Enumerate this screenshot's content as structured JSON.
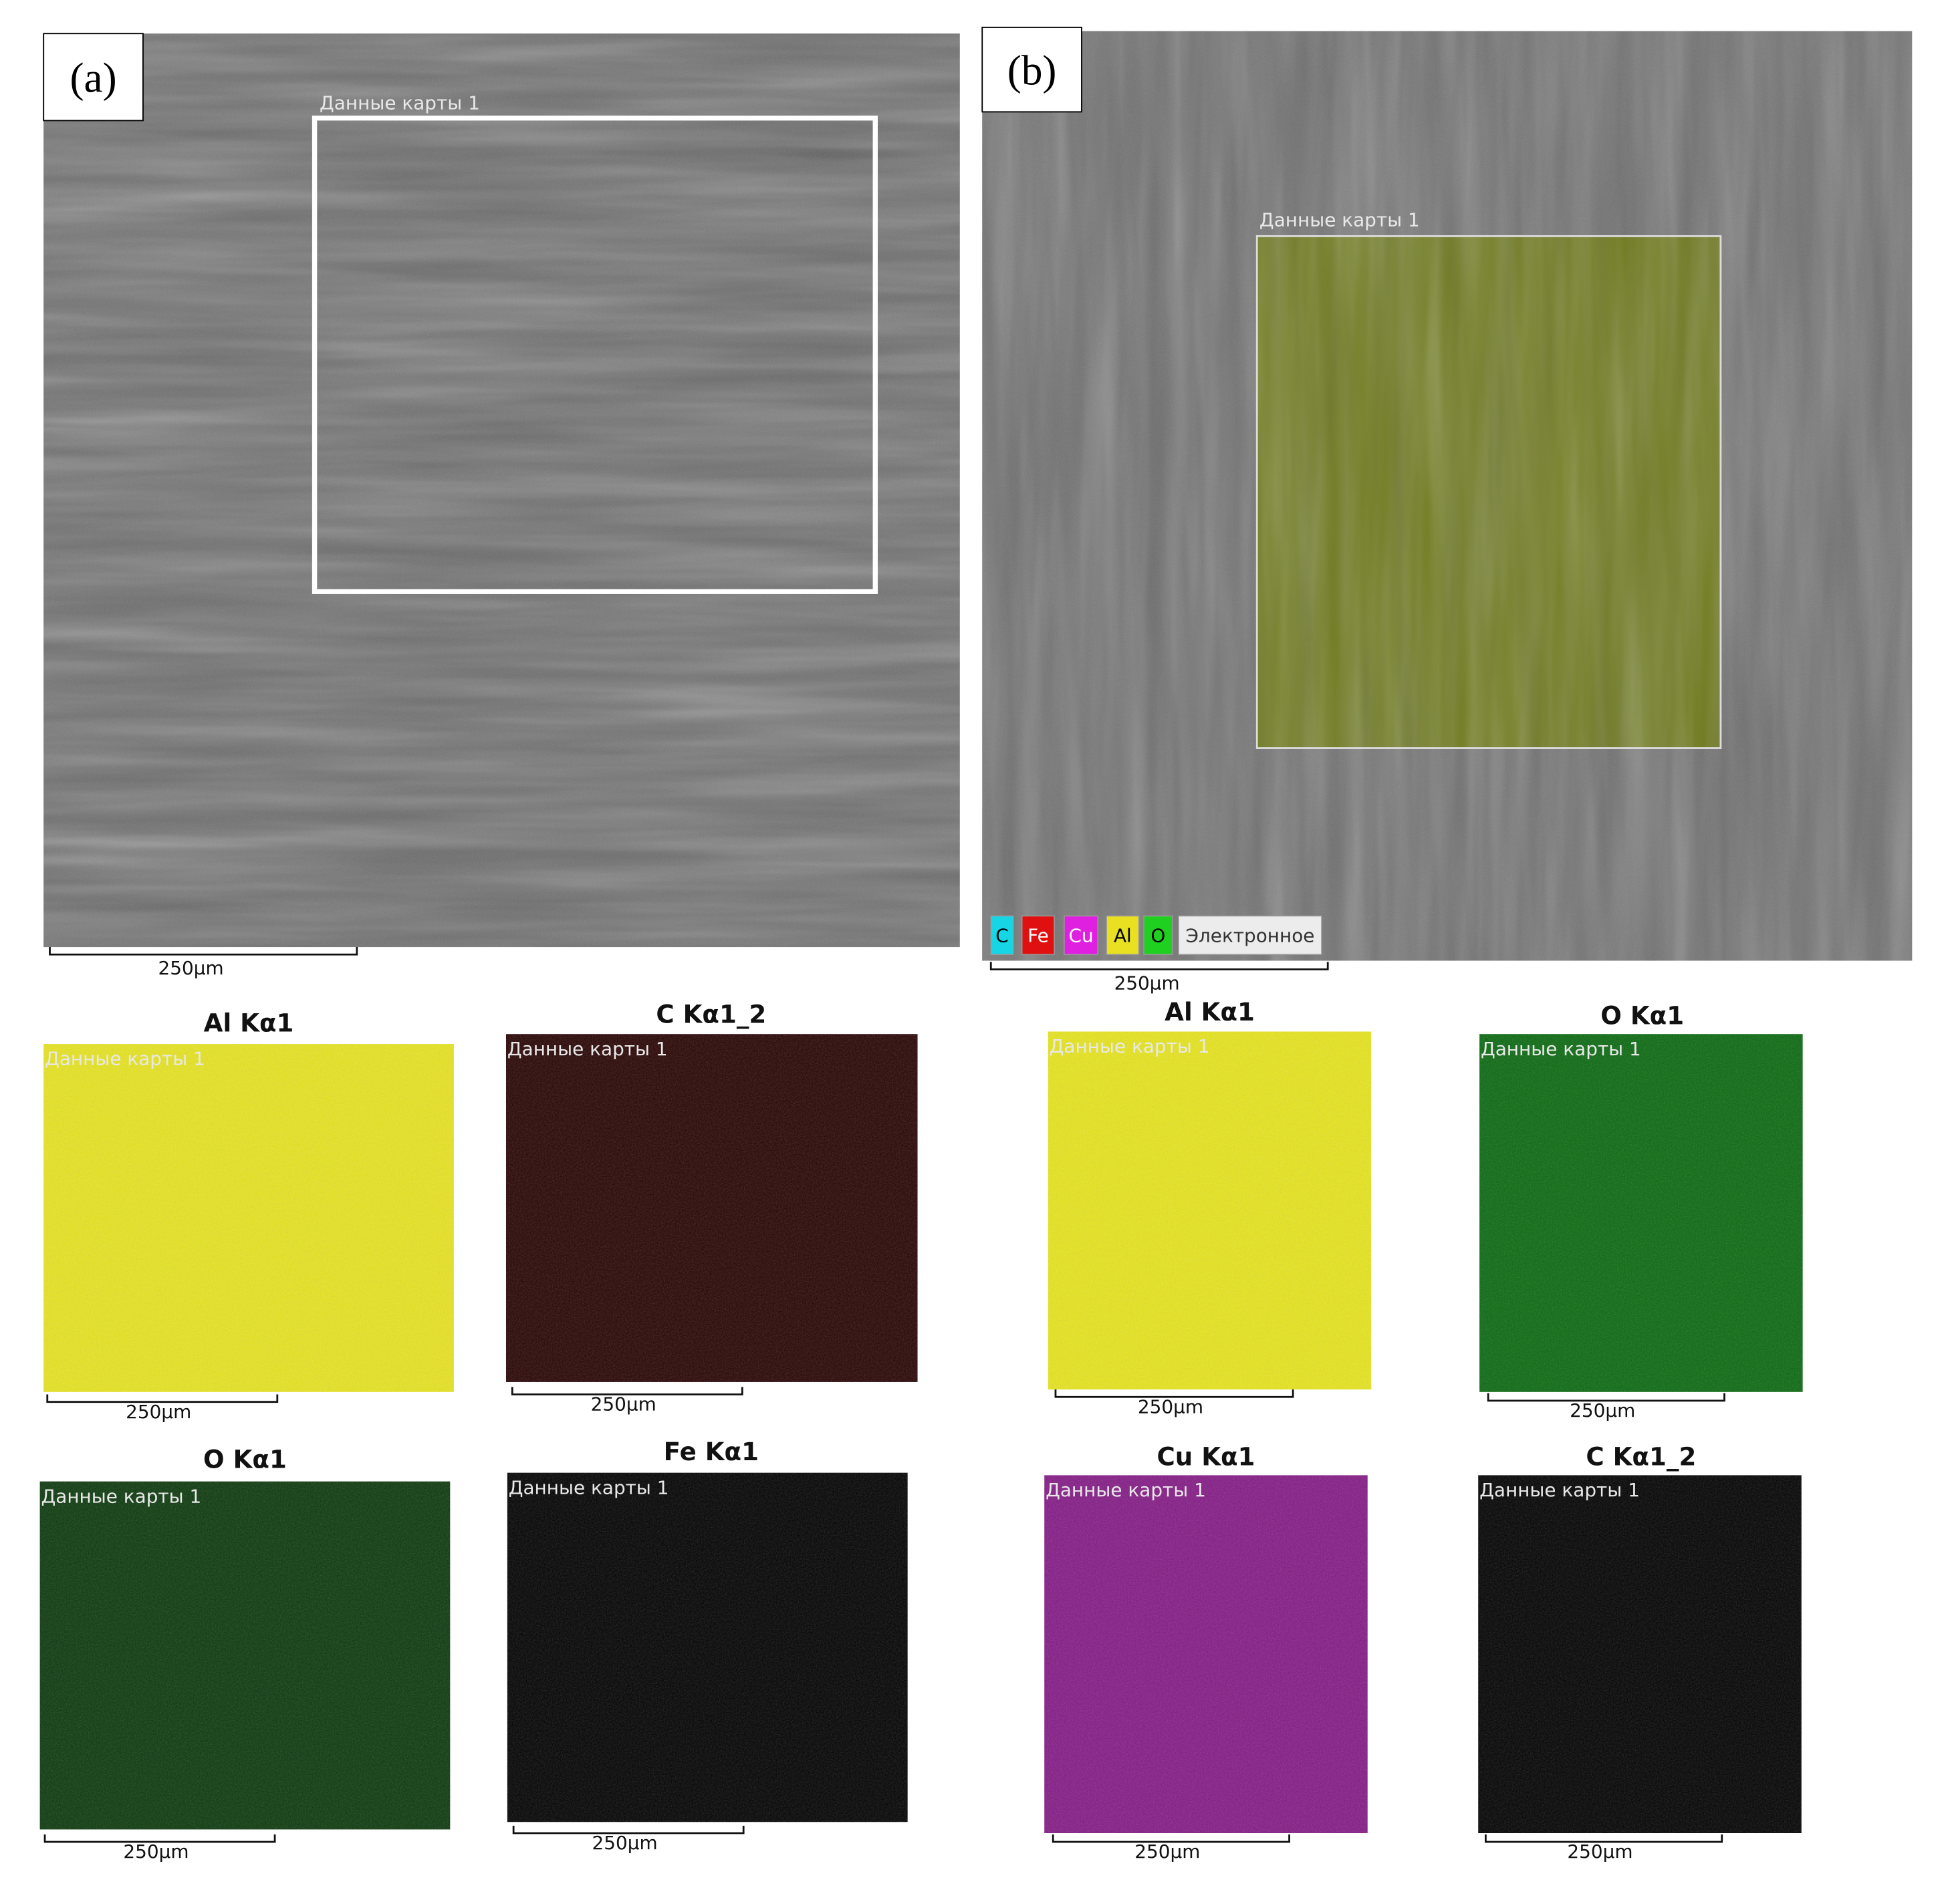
{
  "panels": [
    {
      "label": "(a)",
      "image": {
        "overlay": "Данные карты 1",
        "scale_bar": "250µm"
      },
      "maps": [
        {
          "title": "Al Kα1",
          "overlay": "Данные карты 1",
          "scale_bar": "250µm"
        },
        {
          "title": "C Kα1_2",
          "overlay": "Данные карты 1",
          "scale_bar": "250µm"
        },
        {
          "title": "O Kα1",
          "overlay": "Данные карты 1",
          "scale_bar": "250µm"
        },
        {
          "title": "Fe Kα1",
          "overlay": "Данные карты 1",
          "scale_bar": "250µm"
        }
      ]
    },
    {
      "label": "(b)",
      "image": {
        "overlay": "Данные карты 1",
        "scale_bar": "250µm",
        "legend": [
          "C",
          "Fe",
          "Cu",
          "Al",
          "O",
          "Электронное"
        ]
      },
      "maps": [
        {
          "title": "Al Kα1",
          "overlay": "Данные карты 1",
          "scale_bar": "250µm"
        },
        {
          "title": "O Kα1",
          "overlay": "Данные карты 1",
          "scale_bar": "250µm"
        },
        {
          "title": "Cu Kα1",
          "overlay": "Данные карты 1",
          "scale_bar": "250µm"
        },
        {
          "title": "C Kα1_2",
          "overlay": "Данные карты 1",
          "scale_bar": "250µm"
        }
      ]
    }
  ]
}
